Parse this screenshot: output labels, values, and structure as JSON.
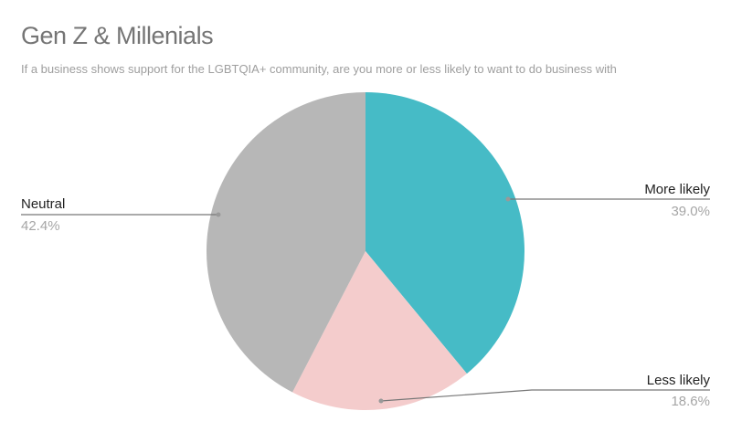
{
  "title": "Gen Z & Millenials",
  "subtitle": "If a business shows support for the LGBTQIA+ community, are you more or less likely to want to do business with",
  "chart_data": {
    "type": "pie",
    "title": "Gen Z & Millenials",
    "subtitle": "If a business shows support for the LGBTQIA+ community, are you more or less likely to want to do business with",
    "categories": [
      "More likely",
      "Less likely",
      "Neutral"
    ],
    "values": [
      39.0,
      18.6,
      42.4
    ],
    "labels": [
      "39.0%",
      "18.6%",
      "42.4%"
    ],
    "colors": [
      "#46bbc6",
      "#f4cccc",
      "#b7b7b7"
    ],
    "start_angle": "12 o'clock, clockwise",
    "legend": "callout labels"
  },
  "slices": [
    {
      "name": "More likely",
      "pct": "39.0%",
      "color": "#46bbc6"
    },
    {
      "name": "Less likely",
      "pct": "18.6%",
      "color": "#f4cccc"
    },
    {
      "name": "Neutral",
      "pct": "42.4%",
      "color": "#b7b7b7"
    }
  ]
}
